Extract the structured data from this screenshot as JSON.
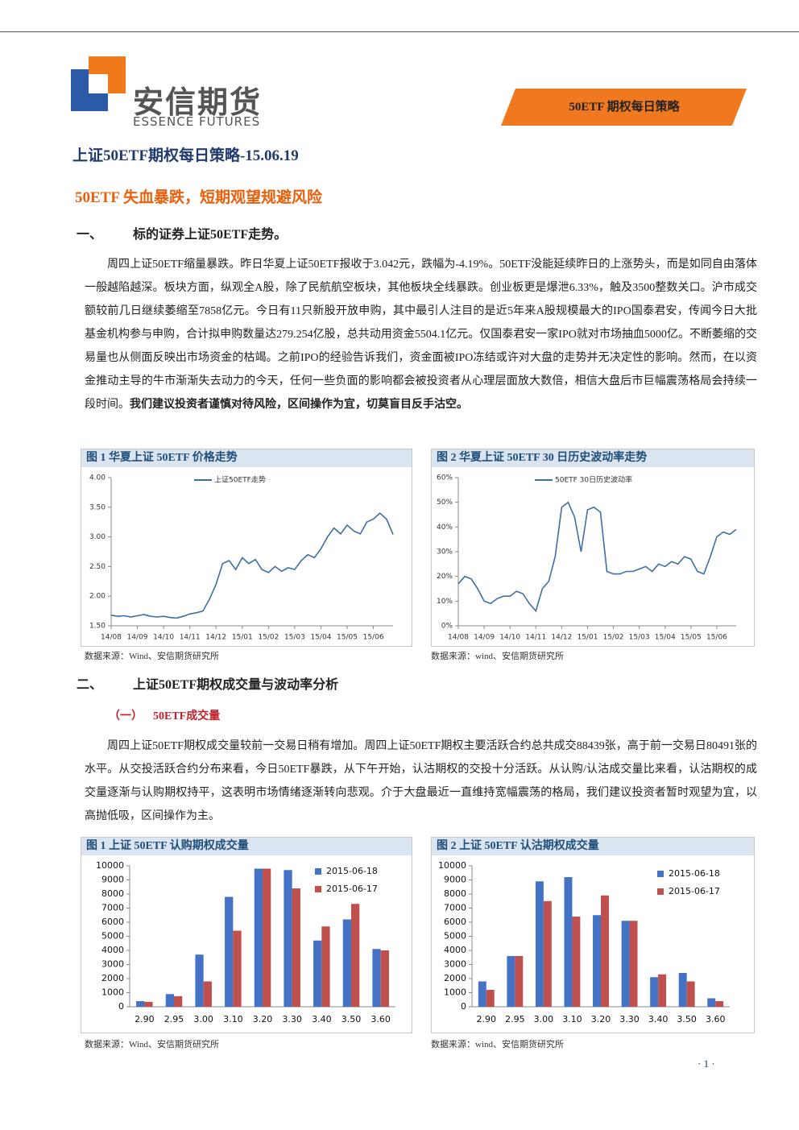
{
  "header": {
    "logo_cn": "安信期货",
    "logo_en": "ESSENCE FUTURES",
    "tag": "50ETF 期权每日策略"
  },
  "title": "上证50ETF期权每日策略-15.06.19",
  "headline": "50ETF 失血暴跌，短期观望规避风险",
  "sections": [
    {
      "number": "一、",
      "heading": "标的证券上证50ETF走势。",
      "text": "周四上证50ETF缩量暴跌。昨日华夏上证50ETF报收于3.042元，跌幅为-4.19%。50ETF没能延续昨日的上涨势头，而是如同自由落体一般越陷越深。板块方面，纵观全A股，除了民航航空板块，其他板块全线暴跌。创业板更是爆泄6.33%，触及3500整数关口。沪市成交额较前几日继续萎缩至7858亿元。今日有11只新股开放申购，其中最引人注目的是近5年来A股规模最大的IPO国泰君安，传闻今日大批基金机构参与申购，合计拟申购数量达279.254亿股，总共动用资金5504.1亿元。仅国泰君安一家IPO就对市场抽血5000亿。不断萎缩的交易量也从侧面反映出市场资金的枯竭。之前IPO的经验告诉我们，资金面被IPO冻结或许对大盘的走势并无决定性的影响。然而，在以资金推动主导的牛市渐渐失去动力的今天，任何一些负面的影响都会被投资者从心理层面放大数倍，相信大盘后市巨幅震荡格局会持续一段时间。",
      "bold": "我们建议投资者谨慎对待风险，区间操作为宜，切莫盲目反手沽空。"
    },
    {
      "number": "二、",
      "heading": "上证50ETF期权成交量与波动率分析",
      "sub_number": "（一）",
      "sub_heading": "50ETF成交量",
      "text": "周四上证50ETF期权成交量较前一交易日稍有增加。周四上证50ETF期权主要活跃合约总共成交88439张，高于前一交易日80491张的水平。从交投活跃合约分布来看，今日50ETF暴跌，从下午开始，认沽期权的交投十分活跃。从认购/认沽成交量比来看，认沽期权的成交量逐渐与认购期权持平，这表明市场情绪逐渐转向悲观。介于大盘最近一直维持宽幅震荡的格局，我们建议投资者暂时观望为宜，以高抛低吸，区间操作为主。"
    }
  ],
  "chart_data": [
    {
      "type": "line",
      "title": "图 1 华夏上证 50ETF 价格走势",
      "source": "数据来源：Wind、安信期货研究所",
      "categories": [
        "14/08",
        null,
        null,
        null,
        "14/09",
        null,
        null,
        null,
        "14/10",
        null,
        null,
        null,
        "14/11",
        null,
        null,
        null,
        "14/12",
        null,
        null,
        null,
        "15/01",
        null,
        null,
        null,
        "15/02",
        null,
        null,
        null,
        "15/03",
        null,
        null,
        null,
        "15/04",
        null,
        null,
        null,
        "15/05",
        null,
        null,
        null,
        "15/06",
        null,
        null,
        null
      ],
      "series": [
        {
          "name": "上证50ETF走势",
          "color": "#3d6fa8",
          "values": [
            1.68,
            1.66,
            1.67,
            1.65,
            1.67,
            1.69,
            1.66,
            1.65,
            1.66,
            1.64,
            1.63,
            1.66,
            1.7,
            1.72,
            1.75,
            1.95,
            2.2,
            2.55,
            2.6,
            2.45,
            2.65,
            2.55,
            2.62,
            2.45,
            2.4,
            2.5,
            2.42,
            2.48,
            2.45,
            2.6,
            2.7,
            2.65,
            2.8,
            3.0,
            3.15,
            3.05,
            3.2,
            3.1,
            3.05,
            3.25,
            3.3,
            3.4,
            3.3,
            3.042
          ]
        }
      ],
      "ylim": [
        1.5,
        4.0
      ],
      "yticks": [
        {
          "value": 1.5,
          "label": "1.50"
        },
        {
          "value": 2.0,
          "label": "2.00"
        },
        {
          "value": 2.5,
          "label": "2.50"
        },
        {
          "value": 3.0,
          "label": "3.00"
        },
        {
          "value": 3.5,
          "label": "3.50"
        },
        {
          "value": 4.0,
          "label": "4.00"
        }
      ]
    },
    {
      "type": "line",
      "title": "图 2 华夏上证 50ETF 30 日历史波动率走势",
      "source": "数据来源：wind、安信期货研究所",
      "categories": [
        "14/08",
        null,
        null,
        null,
        "14/09",
        null,
        null,
        null,
        "14/10",
        null,
        null,
        null,
        "14/11",
        null,
        null,
        null,
        "14/12",
        null,
        null,
        null,
        "15/01",
        null,
        null,
        null,
        "15/02",
        null,
        null,
        null,
        "15/03",
        null,
        null,
        null,
        "15/04",
        null,
        null,
        null,
        "15/05",
        null,
        null,
        null,
        "15/06",
        null,
        null,
        null
      ],
      "series": [
        {
          "name": "50ETF 30日历史波动率",
          "color": "#3d6fa8",
          "values": [
            17,
            20,
            19,
            15,
            10,
            9,
            11,
            12,
            12,
            14,
            13,
            9,
            6,
            15,
            18,
            28,
            48,
            50,
            44,
            30,
            47,
            48,
            46,
            22,
            21,
            21,
            22,
            22,
            23,
            24,
            22,
            25,
            24,
            26,
            25,
            28,
            27,
            22,
            21,
            28,
            36,
            38,
            37,
            39
          ]
        }
      ],
      "ylim": [
        0,
        60
      ],
      "yticks": [
        {
          "value": 0,
          "label": "0%"
        },
        {
          "value": 10,
          "label": "10%"
        },
        {
          "value": 20,
          "label": "20%"
        },
        {
          "value": 30,
          "label": "30%"
        },
        {
          "value": 40,
          "label": "40%"
        },
        {
          "value": 50,
          "label": "50%"
        },
        {
          "value": 60,
          "label": "60%"
        }
      ]
    },
    {
      "type": "bar",
      "title": "图 1 上证 50ETF 认购期权成交量",
      "source": "数据来源：Wind、安信期货研究所",
      "categories": [
        "2.90",
        "2.95",
        "3.00",
        "3.10",
        "3.20",
        "3.30",
        "3.40",
        "3.50",
        "3.60"
      ],
      "series": [
        {
          "name": "2015-06-18",
          "color": "#4472c4",
          "values": [
            400,
            900,
            3700,
            7800,
            9800,
            9700,
            4700,
            6200,
            4100
          ]
        },
        {
          "name": "2015-06-17",
          "color": "#c0504d",
          "values": [
            350,
            750,
            1800,
            5400,
            9800,
            8400,
            5700,
            7300,
            4000
          ]
        }
      ],
      "ylim": [
        0,
        10000
      ],
      "yticks": [
        0,
        1000,
        2000,
        3000,
        4000,
        5000,
        6000,
        7000,
        8000,
        9000,
        10000
      ]
    },
    {
      "type": "bar",
      "title": "图 2 上证 50ETF 认沽期权成交量",
      "source": "数据来源：wind、安信期货研究所",
      "categories": [
        "2.90",
        "2.95",
        "3.00",
        "3.10",
        "3.20",
        "3.30",
        "3.40",
        "3.50",
        "3.60"
      ],
      "series": [
        {
          "name": "2015-06-18",
          "color": "#4472c4",
          "values": [
            1800,
            3600,
            8900,
            9200,
            6500,
            6100,
            2100,
            2400,
            600
          ]
        },
        {
          "name": "2015-06-17",
          "color": "#c0504d",
          "values": [
            1200,
            3600,
            7500,
            6400,
            7900,
            6100,
            2300,
            1800,
            400
          ]
        }
      ],
      "ylim": [
        0,
        10000
      ],
      "yticks": [
        0,
        1000,
        2000,
        3000,
        4000,
        5000,
        6000,
        7000,
        8000,
        9000,
        10000
      ]
    }
  ],
  "page_number": "· 1 ·"
}
